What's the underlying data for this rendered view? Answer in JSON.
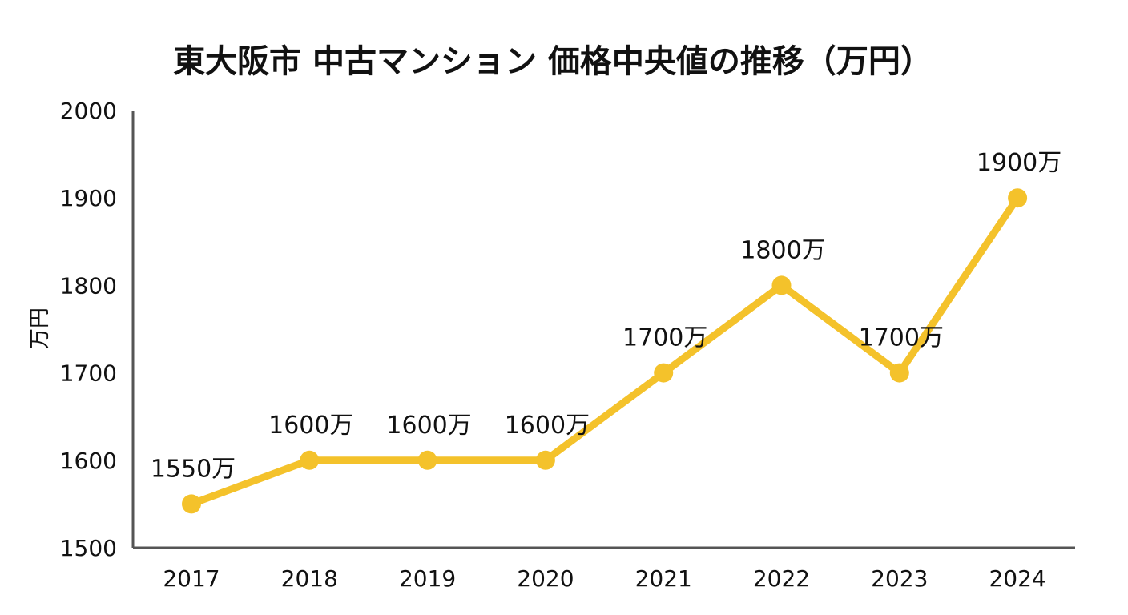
{
  "chart_data": {
    "type": "line",
    "title": "東大阪市 中古マンション 価格中央値の推移（万円）",
    "xlabel": "",
    "ylabel": "万円",
    "categories": [
      "2017",
      "2018",
      "2019",
      "2020",
      "2021",
      "2022",
      "2023",
      "2024"
    ],
    "series": [
      {
        "values": [
          1550,
          1600,
          1600,
          1600,
          1700,
          1800,
          1700,
          1900
        ],
        "data_labels": [
          "1550万",
          "1600万",
          "1600万",
          "1600万",
          "1700万",
          "1800万",
          "1700万",
          "1900万"
        ],
        "color": "#F4C22B"
      }
    ],
    "yticks": [
      "1500",
      "1600",
      "1700",
      "1800",
      "1900",
      "2000"
    ],
    "ylim": [
      1500,
      2000
    ],
    "grid": false,
    "legend": "none",
    "axis_color": "#555555"
  }
}
